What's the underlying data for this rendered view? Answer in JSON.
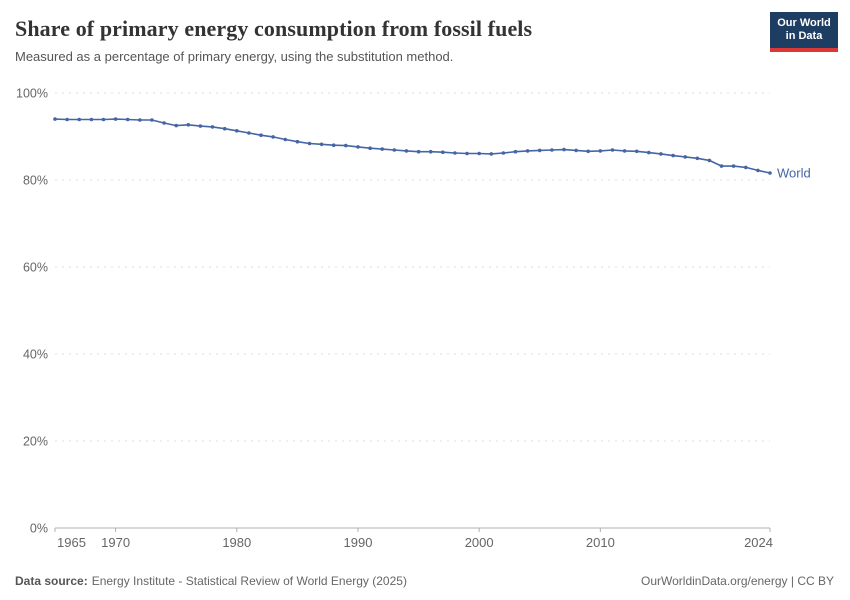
{
  "header": {
    "title": "Share of primary energy consumption from fossil fuels",
    "subtitle": "Measured as a percentage of primary energy, using the substitution method.",
    "logo": {
      "line1": "Our World",
      "line2": "in Data",
      "bg_color": "#1d3d63",
      "accent_color": "#dc3936"
    }
  },
  "chart_data": {
    "type": "line",
    "title": "Share of primary energy consumption from fossil fuels",
    "xlabel": "",
    "ylabel": "",
    "xlim": [
      1965,
      2024
    ],
    "ylim": [
      0,
      100
    ],
    "x_ticks": [
      1965,
      1970,
      1980,
      1990,
      2000,
      2010,
      2024
    ],
    "y_ticks": [
      0,
      20,
      40,
      60,
      80,
      100
    ],
    "y_tick_suffix": "%",
    "grid": "horizontal-dashed",
    "legend_position": "end-of-line",
    "series": [
      {
        "name": "World",
        "color": "#4665a4",
        "x": [
          1965,
          1966,
          1967,
          1968,
          1969,
          1970,
          1971,
          1972,
          1973,
          1974,
          1975,
          1976,
          1977,
          1978,
          1979,
          1980,
          1981,
          1982,
          1983,
          1984,
          1985,
          1986,
          1987,
          1988,
          1989,
          1990,
          1991,
          1992,
          1993,
          1994,
          1995,
          1996,
          1997,
          1998,
          1999,
          2000,
          2001,
          2002,
          2003,
          2004,
          2005,
          2006,
          2007,
          2008,
          2009,
          2010,
          2011,
          2012,
          2013,
          2014,
          2015,
          2016,
          2017,
          2018,
          2019,
          2020,
          2021,
          2022,
          2023,
          2024
        ],
        "values": [
          94.0,
          93.9,
          93.9,
          93.9,
          93.9,
          94.0,
          93.9,
          93.8,
          93.8,
          93.1,
          92.5,
          92.7,
          92.4,
          92.2,
          91.8,
          91.3,
          90.8,
          90.3,
          89.9,
          89.3,
          88.8,
          88.4,
          88.2,
          88.0,
          87.9,
          87.6,
          87.3,
          87.1,
          86.9,
          86.7,
          86.5,
          86.5,
          86.4,
          86.2,
          86.1,
          86.1,
          86.0,
          86.2,
          86.5,
          86.7,
          86.8,
          86.9,
          87.0,
          86.8,
          86.6,
          86.7,
          86.9,
          86.7,
          86.6,
          86.3,
          86.0,
          85.6,
          85.3,
          85.0,
          84.5,
          83.2,
          83.2,
          82.9,
          82.2,
          81.6
        ]
      }
    ]
  },
  "theme": {
    "axis_label_color": "#666666",
    "gridline_color": "#dcdcdc",
    "axis_line_color": "#b0b0b0"
  },
  "footer": {
    "source_label": "Data source:",
    "source_value": "Energy Institute - Statistical Review of World Energy (2025)",
    "credit": "OurWorldinData.org/energy | CC BY"
  }
}
